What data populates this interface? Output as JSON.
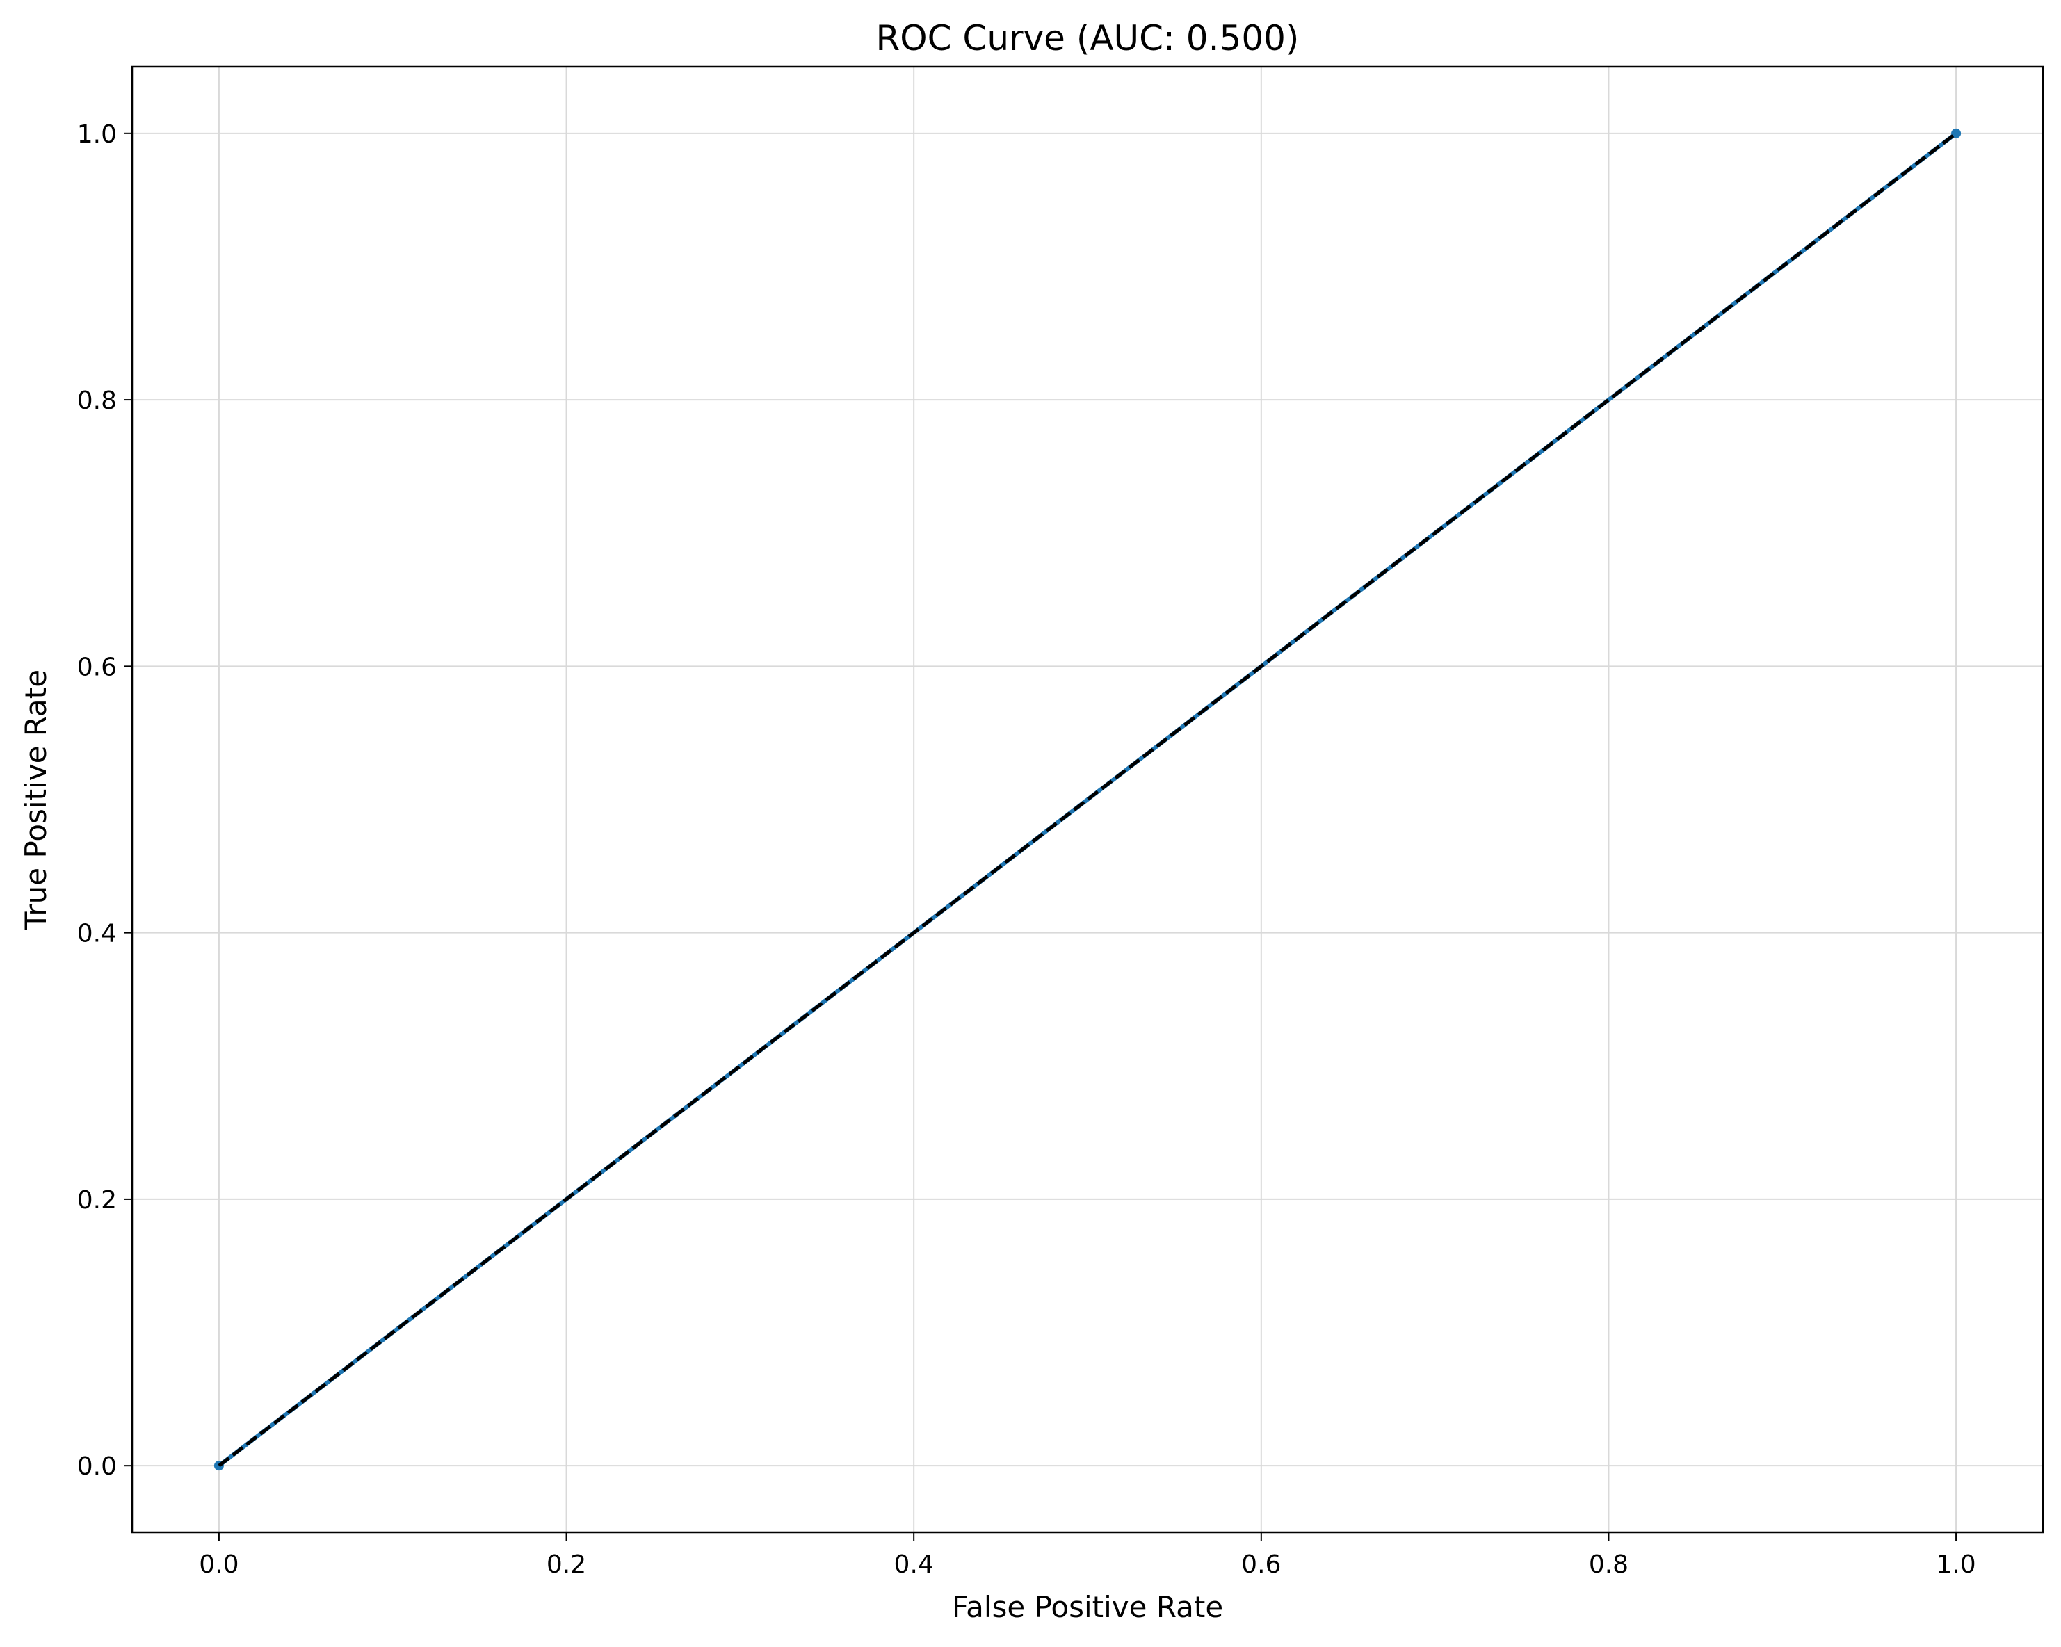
{
  "chart_data": {
    "type": "line",
    "title": "ROC Curve (AUC: 0.500)",
    "xlabel": "False Positive Rate",
    "ylabel": "True Positive Rate",
    "xlim": [
      -0.05,
      1.05
    ],
    "ylim": [
      -0.05,
      1.05
    ],
    "grid": true,
    "xticks": [
      0.0,
      0.2,
      0.4,
      0.6,
      0.8,
      1.0
    ],
    "yticks": [
      0.0,
      0.2,
      0.4,
      0.6,
      0.8,
      1.0
    ],
    "xtick_labels": [
      "0.0",
      "0.2",
      "0.4",
      "0.6",
      "0.8",
      "1.0"
    ],
    "ytick_labels": [
      "0.0",
      "0.2",
      "0.4",
      "0.6",
      "0.8",
      "1.0"
    ],
    "series": [
      {
        "x": [
          0.0,
          1.0
        ],
        "y": [
          0.0,
          1.0
        ],
        "color": "#1f77b4",
        "marker": "circle",
        "line_style": "solid"
      },
      {
        "x": [
          0.0,
          1.0
        ],
        "y": [
          0.0,
          1.0
        ],
        "color": "#000000",
        "marker": "none",
        "line_style": "dashed"
      }
    ],
    "colors": {
      "grid": "#d9d9d9",
      "axes": "#000000"
    }
  }
}
